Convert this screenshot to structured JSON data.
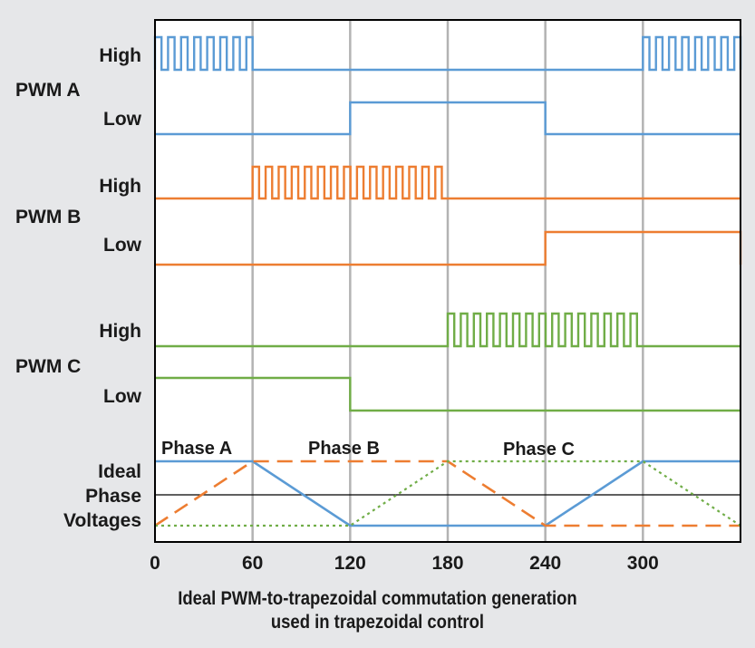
{
  "title_lines": [
    "Ideal PWM-to-trapezoidal commutation generation",
    "used in trapezoidal control"
  ],
  "x_ticks": [
    "0",
    "60",
    "120",
    "180",
    "240",
    "300"
  ],
  "signals": [
    {
      "name": "PWM A",
      "high_label": "High",
      "low_label": "Low",
      "color": "#5b9bd5"
    },
    {
      "name": "PWM B",
      "high_label": "High",
      "low_label": "Low",
      "color": "#ed7d31"
    },
    {
      "name": "PWM C",
      "high_label": "High",
      "low_label": "Low",
      "color": "#70ad47"
    }
  ],
  "phase_section": {
    "y_label_lines": [
      "Ideal",
      "Phase",
      "Voltages"
    ],
    "phase_labels": [
      "Phase A",
      "Phase B",
      "Phase C"
    ]
  },
  "chart_data": {
    "type": "line",
    "x_range": [
      0,
      360
    ],
    "x_tick_values": [
      0,
      60,
      120,
      180,
      240,
      300
    ],
    "high_side": {
      "PWM A": {
        "pwm": [
          [
            0,
            60
          ],
          [
            300,
            360
          ]
        ]
      },
      "PWM B": {
        "pwm": [
          [
            60,
            180
          ]
        ]
      },
      "PWM C": {
        "pwm": [
          [
            180,
            300
          ]
        ]
      }
    },
    "low_side": {
      "PWM A": {
        "on": [
          [
            120,
            240
          ]
        ]
      },
      "PWM B": {
        "on": [
          [
            240,
            360
          ]
        ]
      },
      "PWM C": {
        "on": [
          [
            0,
            120
          ]
        ]
      }
    },
    "phase_voltages": [
      {
        "name": "Phase A",
        "style": "solid",
        "color": "#5b9bd5",
        "x": [
          0,
          60,
          120,
          240,
          300,
          360
        ],
        "y": [
          1,
          1,
          0,
          0,
          1,
          1
        ]
      },
      {
        "name": "Phase B",
        "style": "dashed",
        "color": "#ed7d31",
        "x": [
          0,
          60,
          180,
          240,
          360
        ],
        "y": [
          0,
          1,
          1,
          0,
          0
        ]
      },
      {
        "name": "Phase C",
        "style": "dotted",
        "color": "#70ad47",
        "x": [
          0,
          120,
          180,
          300,
          360
        ],
        "y": [
          0,
          0,
          1,
          1,
          0
        ]
      }
    ]
  }
}
